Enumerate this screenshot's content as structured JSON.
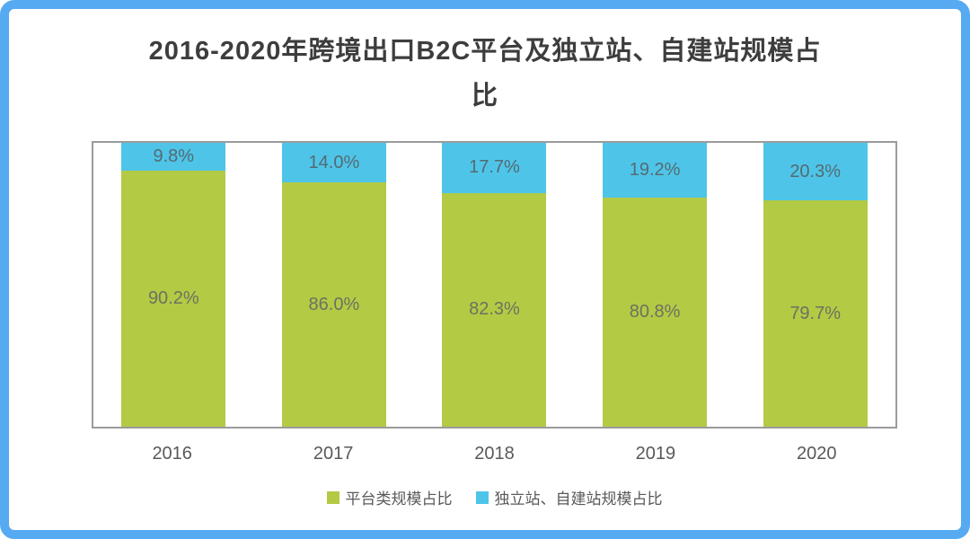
{
  "header": {
    "title_lines": [
      "2016-2020年跨境出口B2C平台及独立站、自建站规模占",
      "比"
    ]
  },
  "colors": {
    "frame_border": "#55aaf2",
    "plot_border": "#9b9b9b",
    "platform_green": "#b3ca45",
    "independent_blue": "#4ec5e8",
    "title_text": "#3d3d3d",
    "axis_text": "#595959"
  },
  "chart_data": {
    "type": "bar",
    "stacked": true,
    "title": "2016-2020年跨境出口B2C平台及独立站、自建站规模占比",
    "xlabel": "",
    "ylabel": "",
    "ylim": [
      0,
      100
    ],
    "grid": false,
    "legend_position": "bottom",
    "categories": [
      "2016",
      "2017",
      "2018",
      "2019",
      "2020"
    ],
    "series": [
      {
        "name": "平台类规模占比",
        "color": "#b3ca45",
        "values": [
          90.2,
          86.0,
          82.3,
          80.8,
          79.7
        ],
        "labels": [
          "90.2%",
          "86.0%",
          "82.3%",
          "80.8%",
          "79.7%"
        ]
      },
      {
        "name": "独立站、自建站规模占比",
        "color": "#4ec5e8",
        "values": [
          9.8,
          14.0,
          17.7,
          19.2,
          20.3
        ],
        "labels": [
          "9.8%",
          "14.0%",
          "17.7%",
          "19.2%",
          "20.3%"
        ]
      }
    ]
  }
}
